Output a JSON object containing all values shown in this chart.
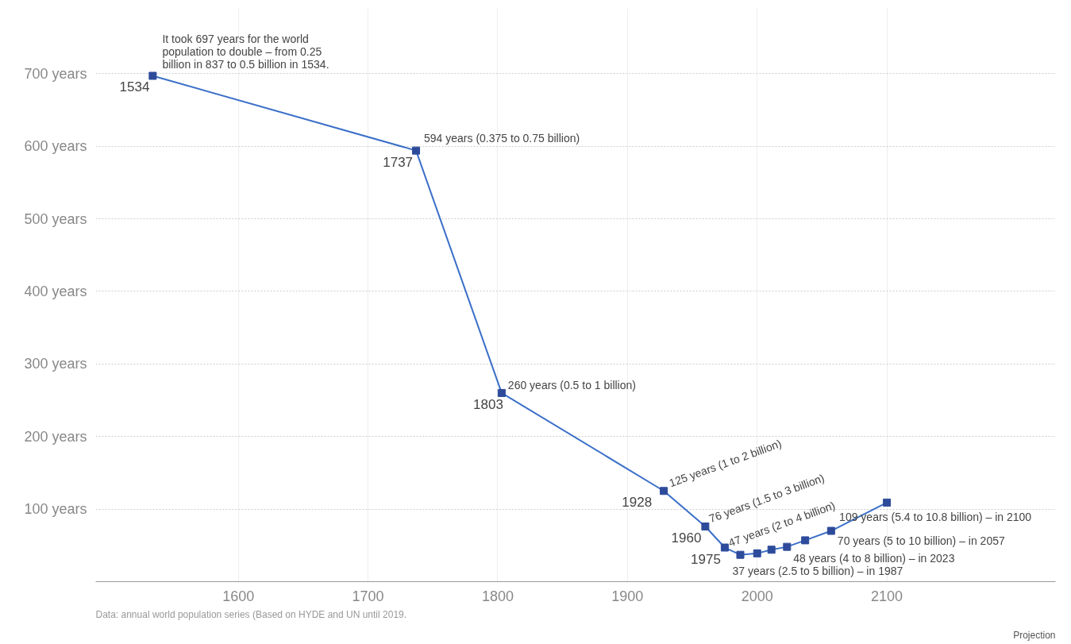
{
  "chart_data": {
    "type": "line",
    "x": [
      1534,
      1737,
      1803,
      1928,
      1960,
      1975,
      1987,
      2000,
      2011,
      2023,
      2037,
      2057,
      2100
    ],
    "series": [
      {
        "color": "#3a6fc8",
        "values": [
          697,
          594,
          260,
          125,
          76,
          47,
          37,
          39,
          44,
          48,
          57,
          70,
          109
        ]
      }
    ],
    "xlim": [
      1490,
      2230
    ],
    "xticks": [
      1600,
      1700,
      1800,
      1900,
      2000,
      2100
    ],
    "ylim": [
      0,
      790
    ],
    "yticks": [
      {
        "value": 100,
        "label": "100 years"
      },
      {
        "value": 200,
        "label": "200 years"
      },
      {
        "value": 300,
        "label": "300 years"
      },
      {
        "value": 400,
        "label": "400 years"
      },
      {
        "value": 500,
        "label": "500 years"
      },
      {
        "value": 600,
        "label": "600 years"
      },
      {
        "value": 700,
        "label": "700 years"
      }
    ],
    "grid": true,
    "marker": "square",
    "line_style": "solid",
    "annotations": [
      {
        "text": "It took 697 years for the world\npopulation to double – from 0.25\nbillion in 837 to 0.5 billion in 1534.",
        "x": 1534,
        "y": 697
      },
      {
        "text": "1534",
        "x": 1534,
        "y": 697
      },
      {
        "text": "594 years (0.375 to 0.75 billion)",
        "x": 1737,
        "y": 594
      },
      {
        "text": "1737",
        "x": 1737,
        "y": 594
      },
      {
        "text": "260 years (0.5 to 1 billion)",
        "x": 1803,
        "y": 260
      },
      {
        "text": "1803",
        "x": 1803,
        "y": 260
      },
      {
        "text": "125 years (1 to 2 billion)",
        "x": 1928,
        "y": 125
      },
      {
        "text": "1928",
        "x": 1928,
        "y": 125
      },
      {
        "text": "76 years (1.5 to 3 billion)",
        "x": 1960,
        "y": 76
      },
      {
        "text": "1960",
        "x": 1960,
        "y": 76
      },
      {
        "text": "47 years (2 to 4 billion)",
        "x": 1975,
        "y": 47
      },
      {
        "text": "1975",
        "x": 1975,
        "y": 47
      },
      {
        "text": "37 years (2.5 to 5 billion) – in 1987",
        "x": 1987,
        "y": 37
      },
      {
        "text": "48 years (4 to 8 billion) – in 2023",
        "x": 2023,
        "y": 48
      },
      {
        "text": "70 years (5 to 10 billion) – in 2057",
        "x": 2057,
        "y": 70
      },
      {
        "text": "109 years (5.4 to 10.8 billion) – in 2100",
        "x": 2100,
        "y": 109
      },
      "Data: annual world population series (Based on HYDE and UN until 2019.",
      "Projection"
    ]
  }
}
